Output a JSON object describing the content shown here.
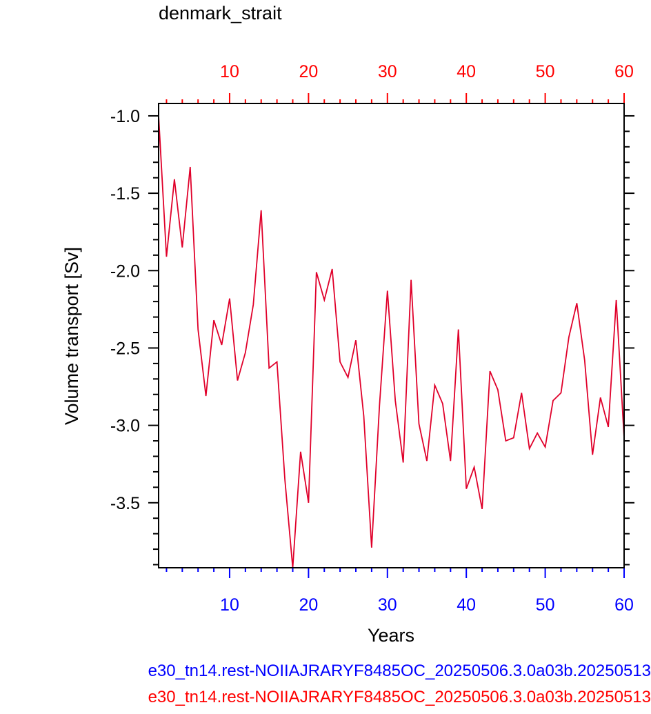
{
  "chart_data": {
    "type": "line",
    "title": "denmark_strait",
    "xlabel": "Years",
    "ylabel": "Volume transport [Sv]",
    "xlim": [
      1,
      60
    ],
    "ylim": [
      -3.92,
      -0.92
    ],
    "x_ticks": [
      10,
      20,
      30,
      40,
      50,
      60
    ],
    "y_ticks": [
      -1.0,
      -1.5,
      -2.0,
      -2.5,
      -3.0,
      -3.5
    ],
    "x_tick_labels": [
      "10",
      "20",
      "30",
      "40",
      "50",
      "60"
    ],
    "y_tick_labels": [
      "-1.0",
      "-1.5",
      "-2.0",
      "-2.5",
      "-3.0",
      "-3.5"
    ],
    "grid": false,
    "series": [
      {
        "color": "#e0002a",
        "x": [
          1,
          2,
          3,
          4,
          5,
          6,
          7,
          8,
          9,
          10,
          11,
          12,
          13,
          14,
          15,
          16,
          17,
          18,
          19,
          20,
          21,
          22,
          23,
          24,
          25,
          26,
          27,
          28,
          29,
          30,
          31,
          32,
          33,
          34,
          35,
          36,
          37,
          38,
          39,
          40,
          41,
          42,
          43,
          44,
          45,
          46,
          47,
          48,
          49,
          50,
          51,
          52,
          53,
          54,
          55,
          56,
          57,
          58,
          59,
          60
        ],
        "values": [
          -1.0,
          -1.91,
          -1.41,
          -1.85,
          -1.33,
          -2.38,
          -2.81,
          -2.32,
          -2.48,
          -2.18,
          -2.71,
          -2.53,
          -2.22,
          -1.61,
          -2.63,
          -2.59,
          -3.35,
          -3.92,
          -3.17,
          -3.5,
          -2.01,
          -2.19,
          -1.99,
          -2.59,
          -2.69,
          -2.45,
          -2.94,
          -3.79,
          -2.87,
          -2.13,
          -2.84,
          -3.24,
          -2.06,
          -2.99,
          -3.23,
          -2.74,
          -2.86,
          -3.23,
          -2.38,
          -3.41,
          -3.27,
          -3.54,
          -2.65,
          -2.77,
          -3.1,
          -3.08,
          -2.79,
          -3.15,
          -3.05,
          -3.14,
          -2.84,
          -2.79,
          -2.43,
          -2.21,
          -2.58,
          -3.19,
          -2.82,
          -3.01,
          -2.19,
          -3.08
        ]
      }
    ]
  },
  "captions": [
    {
      "text": "e30_tn14.rest-NOIIAJRARYF8485OC_20250506.3.0a03b.20250513",
      "color": "#0000ff"
    },
    {
      "text": "e30_tn14.rest-NOIIAJRARYF8485OC_20250506.3.0a03b.20250513",
      "color": "#ff0000"
    }
  ],
  "colors": {
    "bottom_axis": "#0000ff",
    "top_axis": "#ff0000",
    "frame": "#000000"
  }
}
